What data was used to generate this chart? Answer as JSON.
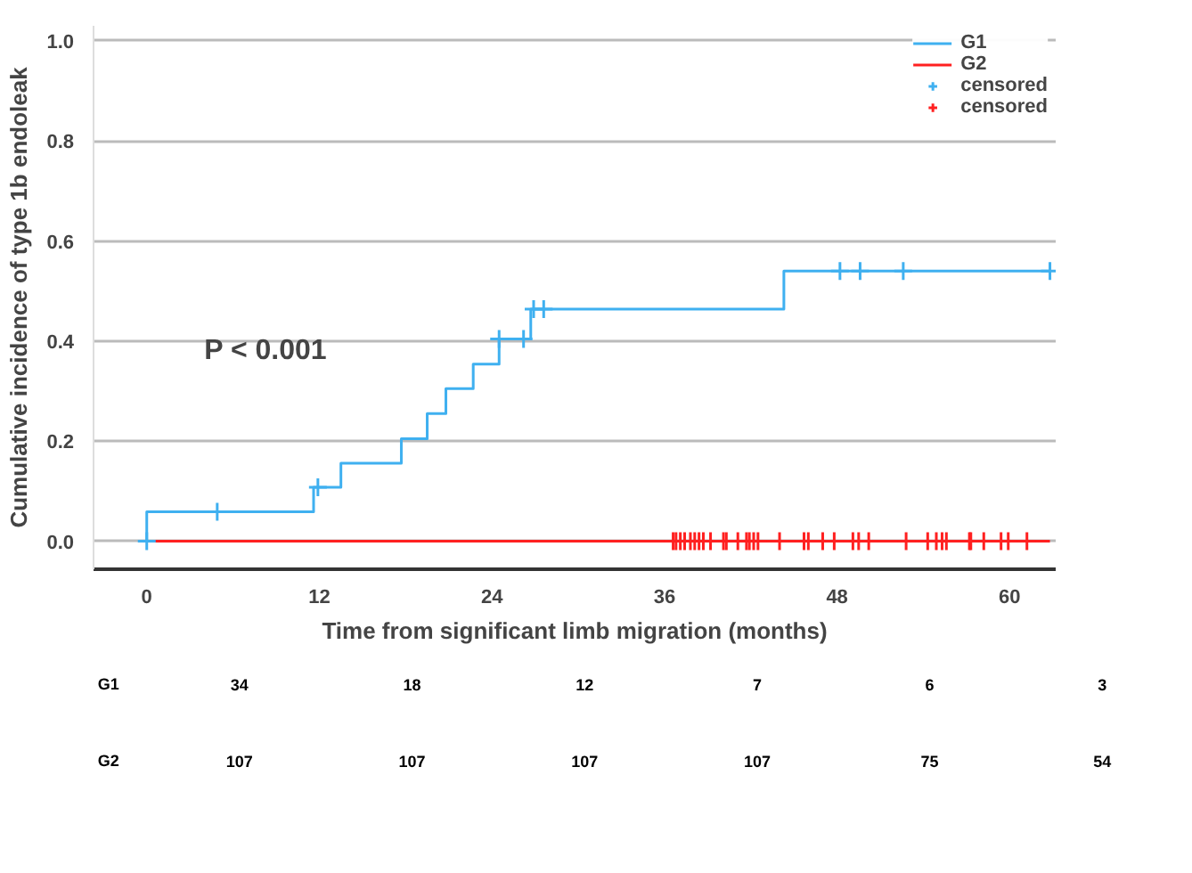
{
  "chart_data": {
    "type": "step",
    "xlabel": "Time from significant limb migration (months)",
    "ylabel": "Cumulative incidence of type 1b endoleak",
    "xlim": [
      -3.7,
      63.2
    ],
    "ylim": [
      -0.056,
      1.03
    ],
    "xticks": [
      0,
      12,
      24,
      36,
      48,
      60
    ],
    "yticks": [
      {
        "value": 0,
        "label": "0.0"
      },
      {
        "value": 0.2,
        "label": "0.2"
      },
      {
        "value": 0.4,
        "label": "0.4"
      },
      {
        "value": 0.6,
        "label": "0.6"
      },
      {
        "value": 0.8,
        "label": "0.8"
      },
      {
        "value": 1,
        "label": "1.0"
      }
    ],
    "grid": "y",
    "legend": "top right",
    "series": [
      {
        "name": "G1",
        "color": "#3fb0f0",
        "x": [
          0,
          0,
          11.6,
          13.5,
          17.7,
          19.5,
          20.8,
          22.7,
          24.5,
          26.7,
          44.3,
          62.8
        ],
        "values": [
          0,
          0.059,
          0.108,
          0.156,
          0.205,
          0.255,
          0.305,
          0.354,
          0.404,
          0.464,
          0.54,
          0.54
        ]
      },
      {
        "name": "G2",
        "color": "#ff2020",
        "x": [
          0,
          62.8
        ],
        "values": [
          0,
          0
        ]
      },
      {
        "name": "censored",
        "type": "scatter",
        "marker": "cross",
        "color": "#3fb0f0",
        "x": [
          0,
          4.9,
          11.9,
          24.5,
          26.2,
          26.9,
          27.6,
          48.2,
          49.6,
          52.6,
          62.8
        ],
        "values": [
          0,
          0.059,
          0.108,
          0.404,
          0.404,
          0.464,
          0.464,
          0.54,
          0.54,
          0.54,
          0.54
        ]
      },
      {
        "name": "censored",
        "type": "scatter",
        "marker": "cross",
        "color": "#ff2020",
        "x": [
          36.6,
          36.8,
          37.1,
          37.4,
          37.8,
          38.1,
          38.4,
          38.7,
          39.2,
          40.1,
          40.3,
          41.1,
          41.7,
          41.9,
          42.2,
          42.5,
          44.0,
          45.7,
          46.0,
          47.0,
          47.8,
          49.1,
          49.5,
          50.2,
          52.8,
          54.3,
          54.9,
          55.3,
          55.6,
          57.2,
          57.3,
          58.2,
          59.4,
          59.9,
          61.2
        ],
        "values": [
          0,
          0,
          0,
          0,
          0,
          0,
          0,
          0,
          0,
          0,
          0,
          0,
          0,
          0,
          0,
          0,
          0,
          0,
          0,
          0,
          0,
          0,
          0,
          0,
          0,
          0,
          0,
          0,
          0,
          0,
          0,
          0,
          0,
          0,
          0
        ]
      }
    ],
    "annotations": [
      "P < 0.001",
      "G1",
      "34",
      "18",
      "12",
      "7",
      "6",
      "3",
      "G2",
      "107",
      "107",
      "107",
      "107",
      "75",
      "54"
    ]
  }
}
